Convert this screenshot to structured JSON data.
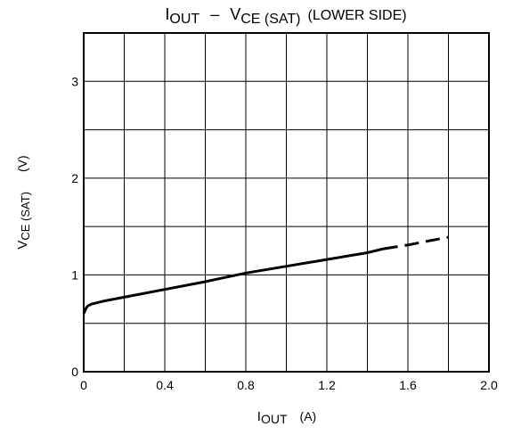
{
  "chart_data": {
    "type": "line",
    "title": {
      "main": "I",
      "main_sub": "OUT",
      "dash": "–",
      "v": "V",
      "v_sub": "CE (SAT)",
      "suffix": "(LOWER SIDE)"
    },
    "xlabel": {
      "main": "I",
      "sub": "OUT",
      "unit": "(A)"
    },
    "ylabel": {
      "main": "V",
      "sub": "CE (SAT)",
      "unit": "(V)"
    },
    "xlim": [
      0,
      2.0
    ],
    "ylim": [
      0,
      3.5
    ],
    "x_ticks": [
      0,
      0.4,
      0.8,
      1.2,
      1.6,
      2.0
    ],
    "x_tick_labels": [
      "0",
      "0.4",
      "0.8",
      "1.2",
      "1.6",
      "2.0"
    ],
    "y_ticks": [
      0,
      1,
      2,
      3
    ],
    "y_tick_labels": [
      "0",
      "1",
      "2",
      "3"
    ],
    "grid": true,
    "series": [
      {
        "style": "solid",
        "color": "#000000",
        "x": [
          0.0,
          0.01,
          0.02,
          0.04,
          0.06,
          0.1,
          0.2,
          0.4,
          0.6,
          0.8,
          1.0,
          1.2,
          1.4,
          1.48
        ],
        "y": [
          0.6,
          0.65,
          0.68,
          0.7,
          0.71,
          0.73,
          0.77,
          0.85,
          0.93,
          1.02,
          1.09,
          1.16,
          1.23,
          1.27
        ]
      },
      {
        "style": "dashed",
        "color": "#000000",
        "x": [
          1.48,
          1.6,
          1.7,
          1.8
        ],
        "y": [
          1.27,
          1.31,
          1.35,
          1.39
        ]
      }
    ]
  }
}
